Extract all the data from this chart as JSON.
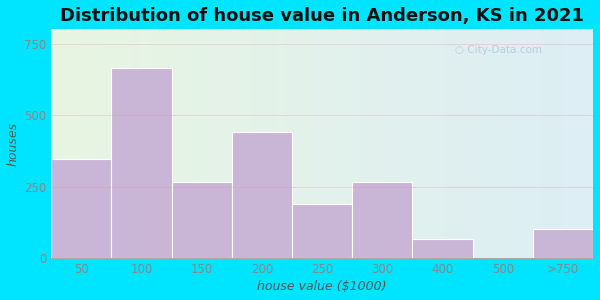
{
  "title": "Distribution of house value in Anderson, KS in 2021",
  "xlabel": "house value ($1000)",
  "ylabel": "houses",
  "bar_labels": [
    "50",
    "100",
    "150",
    "200",
    "250",
    "300",
    "400",
    "500",
    ">750"
  ],
  "bar_values": [
    345,
    665,
    265,
    440,
    190,
    265,
    65,
    0,
    100
  ],
  "bar_color": "#c9b5d5",
  "bar_edgecolor": "#ffffff",
  "ylim": [
    0,
    800
  ],
  "yticks": [
    0,
    250,
    500,
    750
  ],
  "background_outer": "#00e5ff",
  "bg_left_color": "#e8f5e2",
  "bg_right_color": "#ddeef5",
  "grid_color": "#e8a0b0",
  "title_fontsize": 13,
  "axis_label_fontsize": 9,
  "tick_fontsize": 8.5,
  "tick_color": "#888888",
  "watermark_text": "City-Data.com",
  "watermark_color": "#b0c8d8"
}
